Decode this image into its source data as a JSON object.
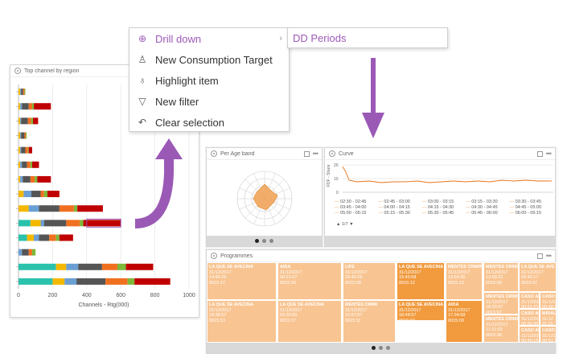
{
  "bar_panel": {
    "title": "Top channel by region",
    "xlabel": "Channels - Rtg(000)",
    "ticks": [
      "0",
      "200",
      "400",
      "600",
      "800",
      "1000"
    ]
  },
  "chart_data": {
    "type": "bar",
    "orientation": "horizontal",
    "stacked": true,
    "title": "Top channel by region",
    "xlabel": "Channels - Rtg(000)",
    "xlim": [
      0,
      1000
    ],
    "colors": [
      "#2bc2ac",
      "#f5b800",
      "#6a9fd4",
      "#555555",
      "#f07020",
      "#7db83a",
      "#c00000"
    ],
    "series_colors_order": [
      "teal",
      "yellow",
      "blue",
      "dark-gray",
      "orange",
      "green",
      "red"
    ],
    "rows": [
      {
        "segments": [
          0,
          10,
          5,
          12,
          8,
          5,
          0
        ]
      },
      {
        "segments": [
          0,
          10,
          10,
          40,
          20,
          10,
          100
        ]
      },
      {
        "segments": [
          0,
          10,
          5,
          40,
          20,
          10,
          30
        ]
      },
      {
        "segments": [
          0,
          10,
          5,
          20,
          8,
          5,
          0
        ]
      },
      {
        "segments": [
          0,
          10,
          5,
          25,
          15,
          5,
          20
        ]
      },
      {
        "segments": [
          0,
          10,
          10,
          30,
          20,
          10,
          40
        ]
      },
      {
        "segments": [
          0,
          10,
          15,
          45,
          25,
          15,
          80
        ]
      },
      {
        "segments": [
          0,
          30,
          45,
          55,
          20,
          20,
          70
        ]
      },
      {
        "segments": [
          0,
          60,
          60,
          120,
          85,
          20,
          150
        ]
      },
      {
        "segments": [
          70,
          60,
          20,
          130,
          80,
          20,
          220
        ]
      },
      {
        "segments": [
          50,
          40,
          30,
          60,
          40,
          20,
          80
        ]
      },
      {
        "segments": [
          0,
          0,
          20,
          40,
          20,
          20,
          0
        ]
      },
      {
        "segments": [
          220,
          60,
          70,
          140,
          90,
          50,
          160
        ]
      },
      {
        "segments": [
          200,
          70,
          70,
          170,
          130,
          40,
          210
        ]
      }
    ]
  },
  "menu": {
    "items": [
      {
        "label": "Drill down",
        "icon": "crosshair-icon",
        "active": true
      },
      {
        "label": "New Consumption Target",
        "icon": "person-icon",
        "active": false
      },
      {
        "label": "Highlight item",
        "icon": "bulb-icon",
        "active": false
      },
      {
        "label": "New filter",
        "icon": "funnel-icon",
        "active": false
      },
      {
        "label": "Clear selection",
        "icon": "undo-icon",
        "active": false
      }
    ],
    "submenu_label": "DD Periods"
  },
  "colors": {
    "accent": "#9b59b6",
    "arrow": "#9b59b6",
    "orange": "#f0a050"
  },
  "dashboard": {
    "age_title": "Per Age band",
    "curve_title": "Curve",
    "curve_ylabel": "FDF - Share",
    "curve_yticks": [
      "20",
      "10",
      "0"
    ],
    "legend": [
      "02:30 - 02:45",
      "02:45 - 03:00",
      "03:00 - 03:15",
      "03:15 - 03:30",
      "03:30 - 03:45",
      "03:45 - 04:00",
      "04:00 - 04:15",
      "04:15 - 04:30",
      "04:30 - 04:45",
      "04:45 - 05:00",
      "05:00 - 05:15",
      "05:15 - 05:30",
      "05:30 - 05:45",
      "05:45 - 06:00",
      "06:00 - 06:15"
    ],
    "legend_nav": "1/7",
    "prog_title": "Programmes",
    "tiles": [
      {
        "name": "LA QUE SE AVECINA",
        "date": "31/12/2017",
        "a": "14:45:26",
        "b": "0015:17"
      },
      {
        "name": "LA QUE SE AVECINA",
        "date": "31/12/2017",
        "a": "18:38:57",
        "b": "0015:13"
      },
      {
        "name": "AIDA",
        "date": "31/12/2017",
        "a": "00:21:07",
        "b": "0015:16"
      },
      {
        "name": "LA QUE SE AVECINA",
        "date": "31/12/2017",
        "a": "02:30:00",
        "b": "0015:17"
      },
      {
        "name": "LIFE",
        "date": "31/12/2017",
        "a": "22:45:26",
        "b": "0015:08"
      },
      {
        "name": "MENTES CRIMI",
        "date": "31/12/2017",
        "a": "16:57:07",
        "b": "0015:11"
      },
      {
        "name": "LA QUE SE AVECINA",
        "date": "31/12/2017",
        "a": "15:45:58",
        "b": "0015:12"
      },
      {
        "name": "LA QUE SE AVECINA",
        "date": "31/12/2017",
        "a": "18:48:57",
        "b": "0015:07"
      },
      {
        "name": "MENTES CRIMINALES",
        "date": "31/12/2017",
        "a": "13:54:36",
        "b": "0015:12"
      },
      {
        "name": "AIDA",
        "date": "31/12/2017",
        "a": "17:34:58",
        "b": "0015:09"
      },
      {
        "name": "MENTES CRIMINALES",
        "date": "31/12/2017",
        "a": "12:59:22",
        "b": "0015:06"
      },
      {
        "name": "LA QUE SE AVE",
        "date": "31/12/2017",
        "a": "02:42:17",
        "b": "0015:07"
      },
      {
        "name": "MENTES CRIMI",
        "date": "31/12/2017",
        "a": "18:20:37",
        "b": "0015:07"
      },
      {
        "name": "MENTES CRIMI",
        "date": "31/12/2017",
        "a": "11:11:03",
        "b": "0015:06"
      },
      {
        "name": "CASO ABIERTO",
        "date": "31/12/2017",
        "a": "00:01:21",
        "b": "0015:05"
      },
      {
        "name": "CASO ABIERTO",
        "date": "31/12/2017",
        "a": "00:48:16",
        "b": "0015:05"
      },
      {
        "name": "CASO ABIERTO",
        "date": "31/12/2017",
        "a": "00:55:45",
        "b": "0015:04"
      },
      {
        "name": "MIRAL",
        "date": "31/12",
        "a": "01:29",
        "b": "0015"
      },
      {
        "name": "CASO ABIERTO",
        "date": "31/12/2017",
        "a": "00:46:16",
        "b": "0015:04"
      },
      {
        "name": "CASO ABIERTO",
        "date": "31/12/2017",
        "a": "00:51:18",
        "b": "0015:04"
      }
    ]
  }
}
